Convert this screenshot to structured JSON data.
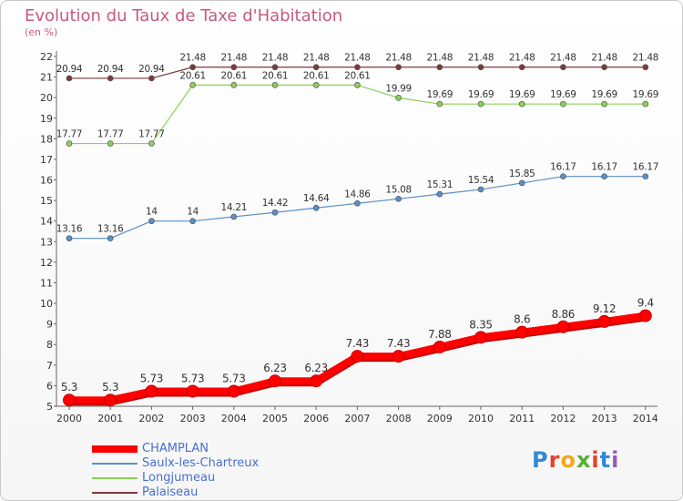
{
  "title": "Evolution du Taux de Taxe d'Habitation",
  "subtitle": "(en %)",
  "logo": {
    "text": "Proxiti",
    "colors": [
      "#2e8ad8",
      "#e8402a",
      "#f2a81d",
      "#55b030",
      "#e8402a",
      "#2e8ad8",
      "#9b59b6"
    ]
  },
  "chart_data": {
    "type": "line",
    "x": [
      2000,
      2001,
      2002,
      2003,
      2004,
      2005,
      2006,
      2007,
      2008,
      2009,
      2010,
      2011,
      2012,
      2013,
      2014
    ],
    "x_tick_labels": [
      "2000",
      "2001",
      "2002",
      "2003",
      "2004",
      "2005",
      "2006",
      "2007",
      "2008",
      "2009",
      "2010",
      "2011",
      "2012",
      "2013",
      "2014"
    ],
    "ylim": [
      5,
      22
    ],
    "y_ticks": [
      5,
      6,
      7,
      8,
      9,
      10,
      11,
      12,
      13,
      14,
      15,
      16,
      17,
      18,
      19,
      20,
      21,
      22
    ],
    "grid": false,
    "legend_position": "bottom-left",
    "series": [
      {
        "name": "CHAMPLAN",
        "color": "#ff0000",
        "values": [
          5.3,
          5.3,
          5.73,
          5.73,
          5.73,
          6.23,
          6.23,
          7.43,
          7.43,
          7.88,
          8.35,
          8.6,
          8.86,
          9.12,
          9.4
        ],
        "labels": [
          "5.3",
          "5.3",
          "5.73",
          "5.73",
          "5.73",
          "6.23",
          "6.23",
          "7.43",
          "7.43",
          "7.88",
          "8.35",
          "8.6",
          "8.86",
          "9.12",
          "9.4"
        ]
      },
      {
        "name": "Saulx-les-Chartreux",
        "color": "#5b8fc7",
        "values": [
          13.16,
          13.16,
          14,
          14,
          14.21,
          14.42,
          14.64,
          14.86,
          15.08,
          15.31,
          15.54,
          15.85,
          16.17,
          16.17,
          16.17
        ],
        "labels": [
          "13.16",
          "13.16",
          "14",
          "14",
          "14.21",
          "14.42",
          "14.64",
          "14.86",
          "15.08",
          "15.31",
          "15.54",
          "15.85",
          "16.17",
          "16.17",
          "16.17"
        ]
      },
      {
        "name": "Longjumeau",
        "color": "#8bd05a",
        "values": [
          17.77,
          17.77,
          17.77,
          20.61,
          20.61,
          20.61,
          20.61,
          20.61,
          19.99,
          19.69,
          19.69,
          19.69,
          19.69,
          19.69,
          19.69
        ],
        "labels": [
          "17.77",
          "17.77",
          "17.77",
          "20.61",
          "20.61",
          "20.61",
          "20.61",
          "20.61",
          "19.99",
          "19.69",
          "19.69",
          "19.69",
          "19.69",
          "19.69",
          "19.69"
        ]
      },
      {
        "name": "Palaiseau",
        "color": "#7b3a3a",
        "values": [
          20.94,
          20.94,
          20.94,
          21.48,
          21.48,
          21.48,
          21.48,
          21.48,
          21.48,
          21.48,
          21.48,
          21.48,
          21.48,
          21.48,
          21.48
        ],
        "labels": [
          "20.94",
          "20.94",
          "20.94",
          "21.48",
          "21.48",
          "21.48",
          "21.48",
          "21.48",
          "21.48",
          "21.48",
          "21.48",
          "21.48",
          "21.48",
          "21.48",
          "21.48"
        ]
      }
    ]
  }
}
